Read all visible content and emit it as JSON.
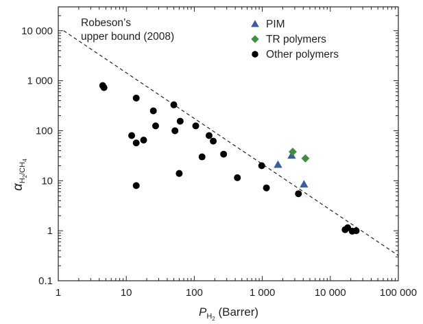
{
  "chart_data": {
    "type": "scatter",
    "x_scale": "log",
    "y_scale": "log",
    "xlim": [
      1,
      100000
    ],
    "ylim": [
      0.1,
      30000
    ],
    "x_ticks": [
      1,
      10,
      100,
      1000,
      10000,
      100000
    ],
    "x_tick_labels": [
      "1",
      "10",
      "100",
      "1 000",
      "10 000",
      "100 000"
    ],
    "y_ticks": [
      0.1,
      1,
      10,
      100,
      1000,
      10000
    ],
    "y_tick_labels": [
      "0.1",
      "1",
      "10",
      "100",
      "1 000",
      "10 000"
    ],
    "xlabel": {
      "main": "P",
      "sub": "H",
      "sub2": "2",
      "rest": " (Barrer)"
    },
    "ylabel": {
      "main": "α",
      "sub": "H",
      "sub2": "2",
      "sub3": "/CH",
      "sub4": "4"
    },
    "annotation": {
      "line1": "Robeson’s",
      "line2": "upper bound (2008)"
    },
    "upper_bound": {
      "x": [
        1.2,
        100000
      ],
      "y": [
        10000,
        0.32
      ],
      "style": "dashed"
    },
    "legend_position": "top-right",
    "series": [
      {
        "name": "PIM",
        "marker": "triangle",
        "color": "#3b5ba9",
        "points": [
          [
            1700,
            21
          ],
          [
            2700,
            32
          ],
          [
            4100,
            8.5
          ]
        ]
      },
      {
        "name": "TR polymers",
        "marker": "diamond",
        "color": "#3f8f3f",
        "points": [
          [
            2800,
            38
          ],
          [
            4300,
            28
          ]
        ]
      },
      {
        "name": "Other polymers",
        "marker": "circle",
        "color": "#000000",
        "points": [
          [
            4.5,
            800
          ],
          [
            4.7,
            730
          ],
          [
            12,
            80
          ],
          [
            14,
            450
          ],
          [
            14,
            57
          ],
          [
            14,
            8
          ],
          [
            18,
            65
          ],
          [
            25,
            250
          ],
          [
            27,
            125
          ],
          [
            50,
            330
          ],
          [
            52,
            100
          ],
          [
            60,
            14
          ],
          [
            62,
            155
          ],
          [
            105,
            125
          ],
          [
            130,
            30
          ],
          [
            165,
            80
          ],
          [
            190,
            62
          ],
          [
            270,
            34
          ],
          [
            430,
            11.5
          ],
          [
            980,
            20
          ],
          [
            1150,
            7.2
          ],
          [
            3400,
            5.5
          ],
          [
            16500,
            1.05
          ],
          [
            18000,
            1.15
          ],
          [
            21000,
            0.98
          ],
          [
            24000,
            1.0
          ]
        ]
      }
    ]
  }
}
